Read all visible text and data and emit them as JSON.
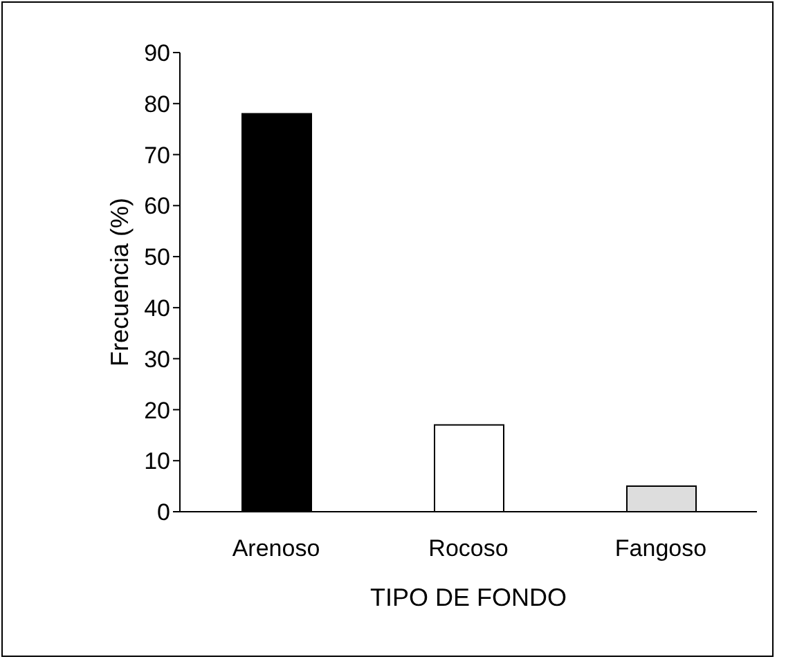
{
  "chart_data": {
    "type": "bar",
    "xlabel": "TIPO DE FONDO",
    "ylabel": "Frecuencia (%)",
    "categories": [
      "Arenoso",
      "Rocoso",
      "Fangoso"
    ],
    "values": [
      78,
      17,
      5
    ],
    "colors": [
      "#000000",
      "#ffffff",
      "#dddddd"
    ],
    "ylim": [
      0,
      90
    ],
    "yticks": [
      0,
      10,
      20,
      30,
      40,
      50,
      60,
      70,
      80,
      90
    ],
    "grid": false,
    "legend": false
  }
}
